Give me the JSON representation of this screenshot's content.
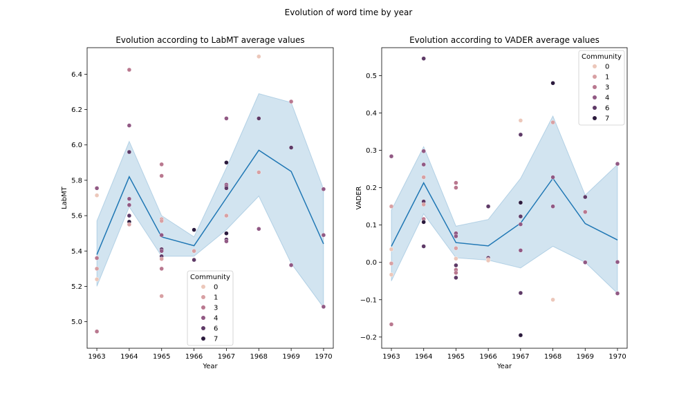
{
  "figure": {
    "suptitle": "Evolution of word time by year"
  },
  "chart_data": [
    {
      "type": "scatter",
      "title": "Evolution according to LabMT average values",
      "xlabel": "Year",
      "ylabel": "LabMT",
      "xlim": [
        1962.7,
        1970.3
      ],
      "ylim": [
        4.85,
        6.55
      ],
      "xticks": [
        1963,
        1964,
        1965,
        1966,
        1967,
        1968,
        1969,
        1970
      ],
      "yticks": [
        5.0,
        5.2,
        5.4,
        5.6,
        5.8,
        6.0,
        6.2,
        6.4
      ],
      "ytick_labels": [
        "5.0",
        "5.2",
        "5.4",
        "5.6",
        "5.8",
        "6.0",
        "6.2",
        "6.4"
      ],
      "legend": {
        "title": "Community",
        "entries": [
          "0",
          "1",
          "3",
          "4",
          "6",
          "7"
        ],
        "placement": "lower-center"
      },
      "mean_line": {
        "x": [
          1963,
          1964,
          1965,
          1966,
          1967,
          1968,
          1969,
          1970
        ],
        "y": [
          5.38,
          5.82,
          5.48,
          5.43,
          5.7,
          5.97,
          5.85,
          5.44
        ],
        "ci_lower": [
          5.2,
          5.65,
          5.37,
          5.37,
          5.52,
          5.71,
          5.33,
          5.08
        ],
        "ci_upper": [
          5.57,
          6.02,
          5.6,
          5.48,
          5.87,
          6.29,
          6.24,
          5.75
        ],
        "color": "#1f77b4"
      },
      "points": [
        {
          "x": 1963,
          "y": 5.755,
          "c": "4"
        },
        {
          "x": 1963,
          "y": 5.715,
          "c": "0"
        },
        {
          "x": 1963,
          "y": 5.36,
          "c": "3"
        },
        {
          "x": 1963,
          "y": 5.3,
          "c": "1"
        },
        {
          "x": 1963,
          "y": 5.24,
          "c": "0"
        },
        {
          "x": 1963,
          "y": 4.945,
          "c": "3"
        },
        {
          "x": 1964,
          "y": 6.425,
          "c": "3"
        },
        {
          "x": 1964,
          "y": 6.11,
          "c": "4"
        },
        {
          "x": 1964,
          "y": 5.96,
          "c": "6"
        },
        {
          "x": 1964,
          "y": 5.695,
          "c": "4"
        },
        {
          "x": 1964,
          "y": 5.66,
          "c": "4"
        },
        {
          "x": 1964,
          "y": 5.6,
          "c": "6"
        },
        {
          "x": 1964,
          "y": 5.565,
          "c": "7"
        },
        {
          "x": 1964,
          "y": 5.55,
          "c": "1"
        },
        {
          "x": 1965,
          "y": 5.89,
          "c": "3"
        },
        {
          "x": 1965,
          "y": 5.825,
          "c": "3"
        },
        {
          "x": 1965,
          "y": 5.58,
          "c": "1"
        },
        {
          "x": 1965,
          "y": 5.57,
          "c": "1"
        },
        {
          "x": 1965,
          "y": 5.49,
          "c": "4"
        },
        {
          "x": 1965,
          "y": 5.41,
          "c": "6"
        },
        {
          "x": 1965,
          "y": 5.4,
          "c": "4"
        },
        {
          "x": 1965,
          "y": 5.37,
          "c": "6"
        },
        {
          "x": 1965,
          "y": 5.355,
          "c": "1"
        },
        {
          "x": 1965,
          "y": 5.3,
          "c": "3"
        },
        {
          "x": 1965,
          "y": 5.145,
          "c": "1"
        },
        {
          "x": 1966,
          "y": 5.52,
          "c": "7"
        },
        {
          "x": 1966,
          "y": 5.4,
          "c": "1"
        },
        {
          "x": 1966,
          "y": 5.35,
          "c": "6"
        },
        {
          "x": 1967,
          "y": 6.15,
          "c": "4"
        },
        {
          "x": 1967,
          "y": 5.9,
          "c": "7"
        },
        {
          "x": 1967,
          "y": 5.775,
          "c": "4"
        },
        {
          "x": 1967,
          "y": 5.765,
          "c": "4"
        },
        {
          "x": 1967,
          "y": 5.755,
          "c": "6"
        },
        {
          "x": 1967,
          "y": 5.6,
          "c": "1"
        },
        {
          "x": 1967,
          "y": 5.5,
          "c": "7"
        },
        {
          "x": 1967,
          "y": 5.465,
          "c": "6"
        },
        {
          "x": 1967,
          "y": 5.455,
          "c": "4"
        },
        {
          "x": 1968,
          "y": 6.5,
          "c": "0"
        },
        {
          "x": 1968,
          "y": 6.15,
          "c": "6"
        },
        {
          "x": 1968,
          "y": 5.845,
          "c": "1"
        },
        {
          "x": 1968,
          "y": 5.525,
          "c": "4"
        },
        {
          "x": 1969,
          "y": 6.245,
          "c": "3"
        },
        {
          "x": 1969,
          "y": 5.985,
          "c": "6"
        },
        {
          "x": 1969,
          "y": 5.32,
          "c": "4"
        },
        {
          "x": 1970,
          "y": 5.75,
          "c": "4"
        },
        {
          "x": 1970,
          "y": 5.49,
          "c": "4"
        },
        {
          "x": 1970,
          "y": 5.085,
          "c": "4"
        }
      ]
    },
    {
      "type": "scatter",
      "title": "Evolution according to VADER average values",
      "xlabel": "Year",
      "ylabel": "VADER",
      "xlim": [
        1962.7,
        1970.3
      ],
      "ylim": [
        -0.23,
        0.575
      ],
      "xticks": [
        1963,
        1964,
        1965,
        1966,
        1967,
        1968,
        1969,
        1970
      ],
      "yticks": [
        -0.2,
        -0.1,
        0.0,
        0.1,
        0.2,
        0.3,
        0.4,
        0.5
      ],
      "ytick_labels": [
        "−0.2",
        "−0.1",
        "0.0",
        "0.1",
        "0.2",
        "0.3",
        "0.4",
        "0.5"
      ],
      "legend": {
        "title": "Community",
        "entries": [
          "0",
          "1",
          "3",
          "4",
          "6",
          "7"
        ],
        "placement": "upper-right"
      },
      "mean_line": {
        "x": [
          1963,
          1964,
          1965,
          1966,
          1967,
          1968,
          1969,
          1970
        ],
        "y": [
          0.043,
          0.213,
          0.053,
          0.044,
          0.105,
          0.225,
          0.104,
          0.06
        ],
        "ci_lower": [
          -0.05,
          0.13,
          0.012,
          0.006,
          -0.015,
          0.043,
          0.0,
          -0.083
        ],
        "ci_upper": [
          0.14,
          0.31,
          0.097,
          0.115,
          0.225,
          0.392,
          0.18,
          0.262
        ],
        "color": "#1f77b4"
      },
      "points": [
        {
          "x": 1963,
          "y": 0.284,
          "c": "4"
        },
        {
          "x": 1963,
          "y": 0.15,
          "c": "1"
        },
        {
          "x": 1963,
          "y": 0.035,
          "c": "0"
        },
        {
          "x": 1963,
          "y": -0.003,
          "c": "1"
        },
        {
          "x": 1963,
          "y": -0.033,
          "c": "0"
        },
        {
          "x": 1963,
          "y": -0.166,
          "c": "3"
        },
        {
          "x": 1964,
          "y": 0.546,
          "c": "6"
        },
        {
          "x": 1964,
          "y": 0.298,
          "c": "4"
        },
        {
          "x": 1964,
          "y": 0.262,
          "c": "4"
        },
        {
          "x": 1964,
          "y": 0.228,
          "c": "1"
        },
        {
          "x": 1964,
          "y": 0.163,
          "c": "6"
        },
        {
          "x": 1964,
          "y": 0.155,
          "c": "1"
        },
        {
          "x": 1964,
          "y": 0.116,
          "c": "3"
        },
        {
          "x": 1964,
          "y": 0.108,
          "c": "7"
        },
        {
          "x": 1964,
          "y": 0.043,
          "c": "6"
        },
        {
          "x": 1965,
          "y": 0.213,
          "c": "3"
        },
        {
          "x": 1965,
          "y": 0.2,
          "c": "3"
        },
        {
          "x": 1965,
          "y": 0.078,
          "c": "4"
        },
        {
          "x": 1965,
          "y": 0.07,
          "c": "4"
        },
        {
          "x": 1965,
          "y": 0.038,
          "c": "1"
        },
        {
          "x": 1965,
          "y": 0.01,
          "c": "0"
        },
        {
          "x": 1965,
          "y": -0.008,
          "c": "6"
        },
        {
          "x": 1965,
          "y": -0.02,
          "c": "3"
        },
        {
          "x": 1965,
          "y": -0.028,
          "c": "3"
        },
        {
          "x": 1965,
          "y": -0.041,
          "c": "6"
        },
        {
          "x": 1966,
          "y": 0.15,
          "c": "6"
        },
        {
          "x": 1966,
          "y": 0.012,
          "c": "6"
        },
        {
          "x": 1966,
          "y": 0.008,
          "c": "1"
        },
        {
          "x": 1966,
          "y": 0.005,
          "c": "0"
        },
        {
          "x": 1967,
          "y": 0.38,
          "c": "0"
        },
        {
          "x": 1967,
          "y": 0.342,
          "c": "6"
        },
        {
          "x": 1967,
          "y": 0.16,
          "c": "7"
        },
        {
          "x": 1967,
          "y": 0.123,
          "c": "6"
        },
        {
          "x": 1967,
          "y": 0.102,
          "c": "4"
        },
        {
          "x": 1967,
          "y": 0.032,
          "c": "4"
        },
        {
          "x": 1967,
          "y": -0.082,
          "c": "6"
        },
        {
          "x": 1967,
          "y": -0.195,
          "c": "7"
        },
        {
          "x": 1968,
          "y": 0.48,
          "c": "7"
        },
        {
          "x": 1968,
          "y": 0.375,
          "c": "1"
        },
        {
          "x": 1968,
          "y": 0.228,
          "c": "4"
        },
        {
          "x": 1968,
          "y": 0.15,
          "c": "4"
        },
        {
          "x": 1968,
          "y": -0.1,
          "c": "0"
        },
        {
          "x": 1969,
          "y": 0.175,
          "c": "6"
        },
        {
          "x": 1969,
          "y": 0.135,
          "c": "3"
        },
        {
          "x": 1969,
          "y": 0.0,
          "c": "4"
        },
        {
          "x": 1970,
          "y": 0.264,
          "c": "4"
        },
        {
          "x": 1970,
          "y": 0.001,
          "c": "4"
        },
        {
          "x": 1970,
          "y": -0.083,
          "c": "4"
        }
      ]
    }
  ],
  "palette": {
    "0": "#ecc7ba",
    "1": "#d8a0a3",
    "3": "#b9788f",
    "4": "#915984",
    "6": "#5e3a67",
    "7": "#2b1a3d"
  }
}
